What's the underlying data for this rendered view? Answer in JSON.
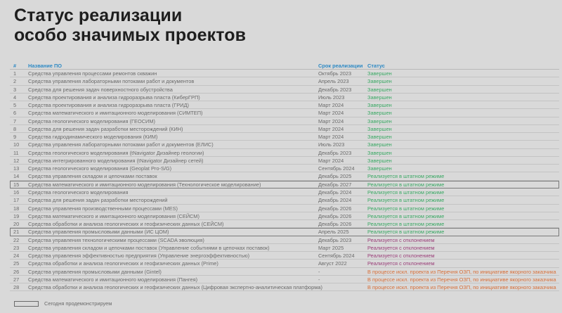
{
  "page": {
    "title_line1": "Статус реализации",
    "title_line2": "особо значимых проектов"
  },
  "table": {
    "headers": {
      "num": "#",
      "name": "Название ПО",
      "date": "Срок реализации",
      "status": "Статус"
    },
    "rows": [
      {
        "num": "1",
        "name": "Средства управления процессами ремонтов скважин",
        "date": "Октябрь 2023",
        "status": "Завершен",
        "kind": "done"
      },
      {
        "num": "2",
        "name": "Средства управления лабораторными потоками работ и документов",
        "date": "Апрель 2023",
        "status": "Завершен",
        "kind": "done"
      },
      {
        "num": "3",
        "name": "Средства для решения задач поверхностного обустройства",
        "date": "Декабрь 2023",
        "status": "Завершен",
        "kind": "done"
      },
      {
        "num": "4",
        "name": "Средства проектирования и анализа гидроразрыва пласта (КиберГРП)",
        "date": "Июль 2023",
        "status": "Завершен",
        "kind": "done"
      },
      {
        "num": "5",
        "name": "Средства проектирования и анализа гидроразрыва пласта (ГРИД)",
        "date": "Март 2024",
        "status": "Завершен",
        "kind": "done"
      },
      {
        "num": "6",
        "name": "Средства математического и имитационного моделирования (СИМТЕП)",
        "date": "Март 2024",
        "status": "Завершен",
        "kind": "done"
      },
      {
        "num": "7",
        "name": "Средства геологического моделирования (ГЕОСИМ)",
        "date": "Март 2024",
        "status": "Завершен",
        "kind": "done"
      },
      {
        "num": "8",
        "name": "Средства для решения задач разработки месторождений (КИН)",
        "date": "Март 2024",
        "status": "Завершен",
        "kind": "done"
      },
      {
        "num": "9",
        "name": "Средства гидродинамического моделирования (КИМ)",
        "date": "Март 2024",
        "status": "Завершен",
        "kind": "done"
      },
      {
        "num": "10",
        "name": "Средства управления лабораторными потоками работ и документов (ЕЛИС)",
        "date": "Июль 2023",
        "status": "Завершен",
        "kind": "done"
      },
      {
        "num": "11",
        "name": "Средства геологического моделирования (tNavigator Дизайнер геологии)",
        "date": "Декабрь 2023",
        "status": "Завершен",
        "kind": "done"
      },
      {
        "num": "12",
        "name": "Средства интегрированного моделирования (tNavigator Дизайнер сетей)",
        "date": "Март 2024",
        "status": "Завершен",
        "kind": "done"
      },
      {
        "num": "13",
        "name": "Средства геологического моделирования (Geoplat Pro-S/G)",
        "date": "Сентябрь 2024",
        "status": "Завершен",
        "kind": "done"
      },
      {
        "num": "14",
        "name": "Средства управления складом и цепочками поставок",
        "date": "Декабрь 2025",
        "status": "Реализуется в штатном режиме",
        "kind": "ok"
      },
      {
        "num": "15",
        "name": "Средства математического и имитационного моделирования (Технологическое моделирование)",
        "date": "Декабрь 2027",
        "status": "Реализуется в штатном режиме",
        "kind": "ok",
        "highlight": true
      },
      {
        "num": "16",
        "name": "Средства геологического моделирования",
        "date": "Декабрь 2024",
        "status": "Реализуется в штатном режиме",
        "kind": "ok"
      },
      {
        "num": "17",
        "name": "Средства для решения задач разработки месторождений",
        "date": "Декабрь 2024",
        "status": "Реализуется в штатном режиме",
        "kind": "ok"
      },
      {
        "num": "18",
        "name": "Средства управления производственными процессами (MES)",
        "date": "Декабрь 2026",
        "status": "Реализуется в штатном режиме",
        "kind": "ok"
      },
      {
        "num": "19",
        "name": "Средства математического и имитационного моделирования (СЕЙСМ)",
        "date": "Декабрь 2026",
        "status": "Реализуется в штатном режиме",
        "kind": "ok"
      },
      {
        "num": "20",
        "name": "Средства обработки и анализа геологических и геофизических данных (СЕЙСМ)",
        "date": "Декабрь 2026",
        "status": "Реализуется в штатном режиме",
        "kind": "ok"
      },
      {
        "num": "21",
        "name": "Средства управления промысловыми данными (ИС ЦОМ)",
        "date": "Апрель 2025",
        "status": "Реализуется в штатном режиме",
        "kind": "ok",
        "highlight": true
      },
      {
        "num": "22",
        "name": "Средства управления технологическими процессами (SCADA эволюция)",
        "date": "Декабрь 2023",
        "status": "Реализуется с отклонением",
        "kind": "dev"
      },
      {
        "num": "23",
        "name": "Средства управления складом и цепочками поставок (Управление событиями в цепочках поставок)",
        "date": "Март 2025",
        "status": "Реализуется с отклонением",
        "kind": "dev"
      },
      {
        "num": "24",
        "name": "Средства управления эффективностью предприятия  (Управление энергоэффективностью)",
        "date": "Сентябрь 2024",
        "status": "Реализуется с отклонением",
        "kind": "dev"
      },
      {
        "num": "25",
        "name": "Средства обработки и анализа геологических и геофизических данных (Prime)",
        "date": "Август 2022",
        "status": "Реализуется с отклонением",
        "kind": "dev"
      },
      {
        "num": "26",
        "name": "Средства управления промысловыми данными (Gintel)",
        "date": "-",
        "status": "В процессе искл. проекта из Перечня ОЗП, по инициативе якорного заказчика",
        "kind": "excl"
      },
      {
        "num": "27",
        "name": "Средства математического и имитационного моделирования (Пангея)",
        "date": "-",
        "status": "В процессе искл. проекта из Перечня ОЗП, по инициативе якорного заказчика",
        "kind": "excl"
      },
      {
        "num": "28",
        "name": "Средства обработки и анализа геологических и геофизических данных (Цифровая экспертно-аналитическая платформа)",
        "date": "-",
        "status": "В процессе искл. проекта из Перечня ОЗП, по инициативе якорного заказчика",
        "kind": "excl"
      }
    ]
  },
  "legend": {
    "label": "Сегодня продемонстрируем"
  },
  "colors": {
    "header": "#2f8ac4",
    "done": "#3aa864",
    "ok": "#3aa864",
    "dev": "#9a3f79",
    "excl": "#d8703a",
    "background": "#d9d9d9"
  }
}
